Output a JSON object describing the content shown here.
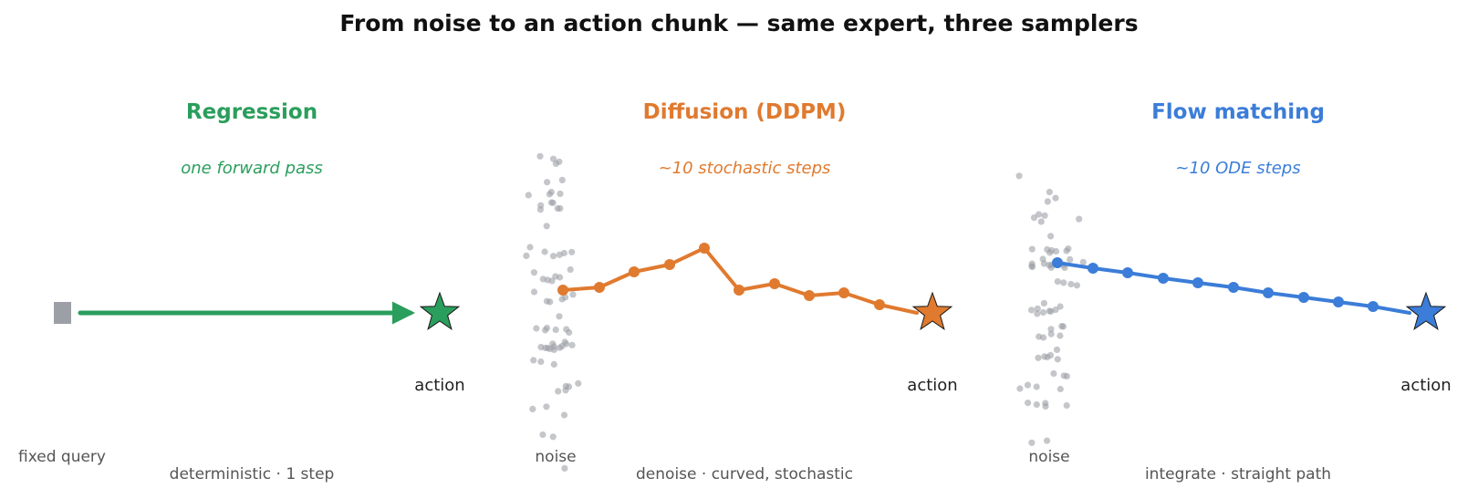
{
  "title": "From noise to an action chunk — same expert, three samplers",
  "colors": {
    "regression": "#2a9e5c",
    "diffusion": "#e07a2f",
    "flow": "#3b7dd8",
    "noise": "#9ca0a6",
    "query": "#9ca0a6"
  },
  "panels": [
    {
      "key": "regression",
      "title": "Regression",
      "subtitle": "one forward pass",
      "start_label": "fixed query",
      "action_label": "action",
      "caption": "deterministic · 1 step"
    },
    {
      "key": "diffusion",
      "title": "Diffusion (DDPM)",
      "subtitle": "~10 stochastic steps",
      "start_label": "noise",
      "action_label": "action",
      "caption": "denoise · curved, stochastic"
    },
    {
      "key": "flow",
      "title": "Flow matching",
      "subtitle": "~10 ODE steps",
      "start_label": "noise",
      "action_label": "action",
      "caption": "integrate · straight path"
    }
  ]
}
